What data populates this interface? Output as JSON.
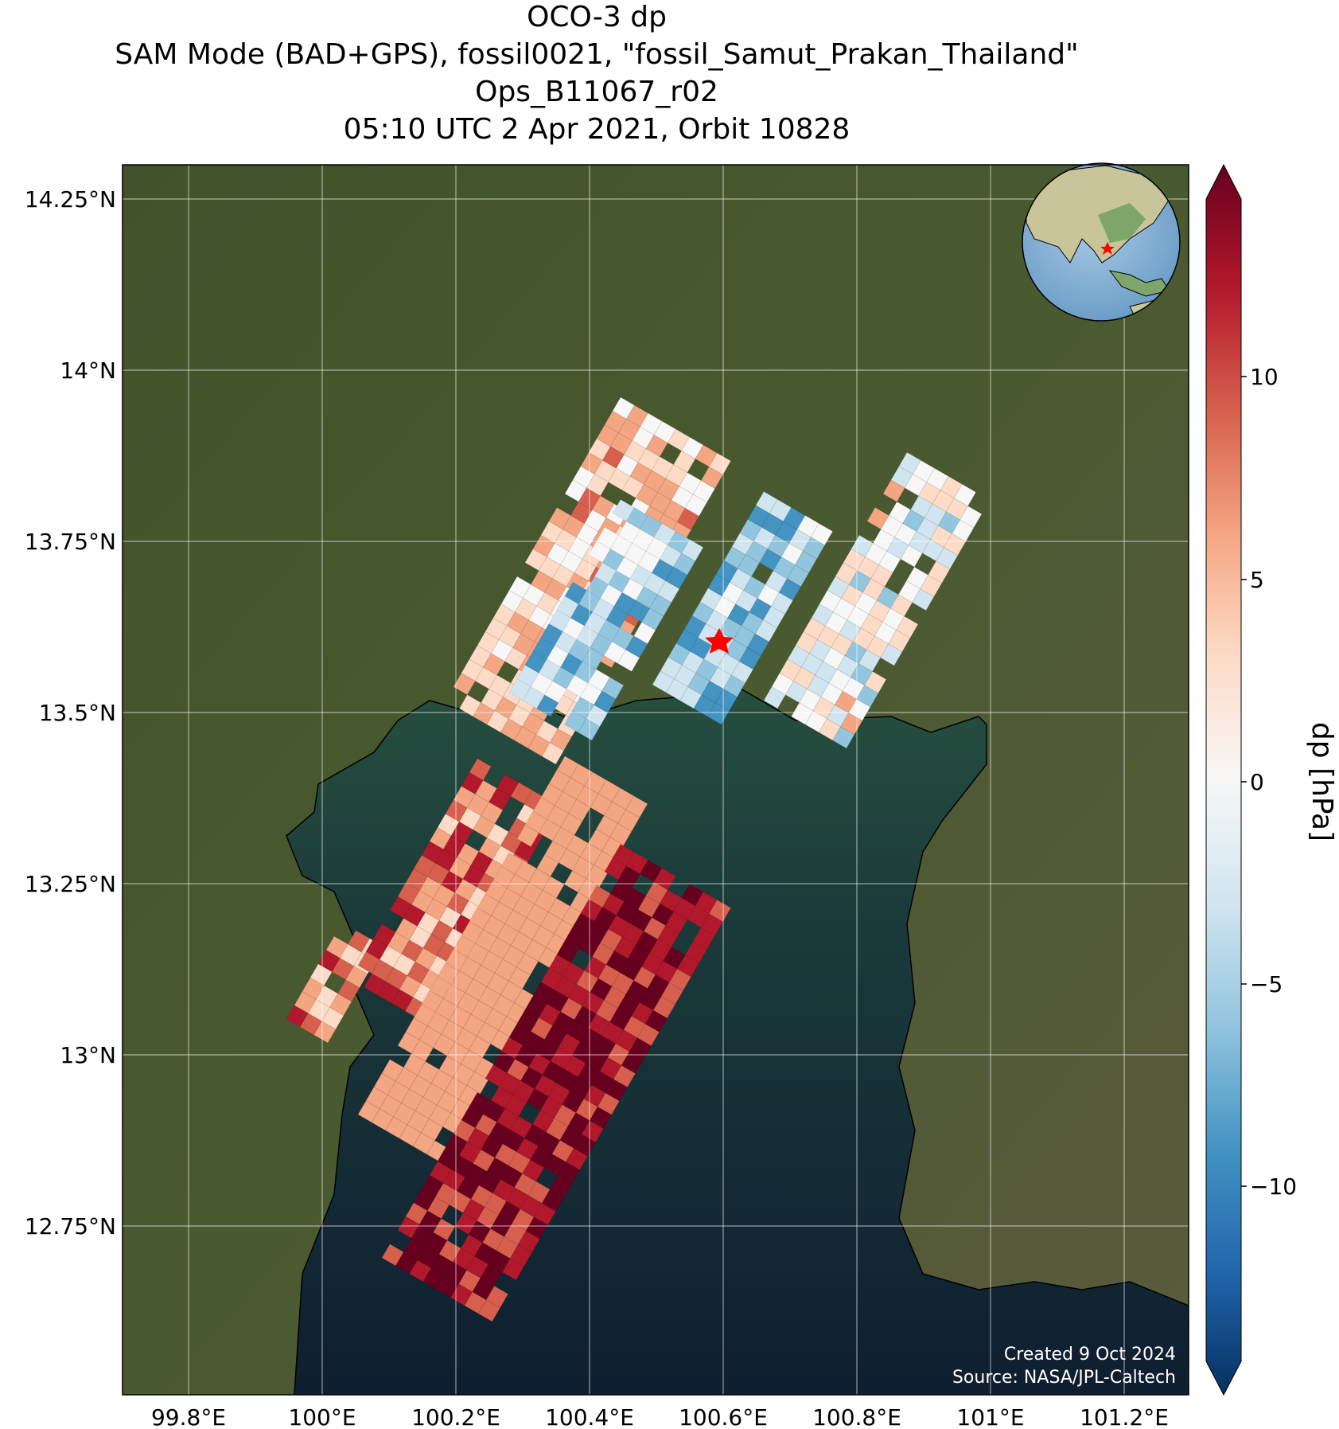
{
  "title": {
    "line1": "OCO-3 dp",
    "line2": "SAM Mode (BAD+GPS), fossil0021, \"fossil_Samut_Prakan_Thailand\"",
    "line3": "Ops_B11067_r02",
    "line4": "05:10 UTC 2 Apr 2021, Orbit 10828"
  },
  "map": {
    "lon_ticks": [
      "99.8°E",
      "100°E",
      "100.2°E",
      "100.4°E",
      "100.6°E",
      "100.8°E",
      "101°E",
      "101.2°E"
    ],
    "lat_ticks": [
      "14.25°N",
      "14°N",
      "13.75°N",
      "13.5°N",
      "13.25°N",
      "13°N",
      "12.75°N"
    ],
    "target_marker": "star",
    "credit_line1": "Created 9 Oct 2024",
    "credit_line2": "Source: NASA/JPL-Caltech",
    "colors": {
      "land": "#3f5028",
      "water": "#12233a",
      "grid": "#ffffff",
      "star": "#ff0000"
    }
  },
  "colorbar": {
    "label": "dp [hPa]",
    "ticks": [
      "10",
      "5",
      "0",
      "−5",
      "−10"
    ],
    "colormap": "RdBu_r",
    "colors": [
      "#053061",
      "#2166ac",
      "#4393c3",
      "#92c5de",
      "#d1e5f0",
      "#f7f7f7",
      "#fddbc7",
      "#f4a582",
      "#d6604d",
      "#b2182b",
      "#67001f"
    ]
  }
}
